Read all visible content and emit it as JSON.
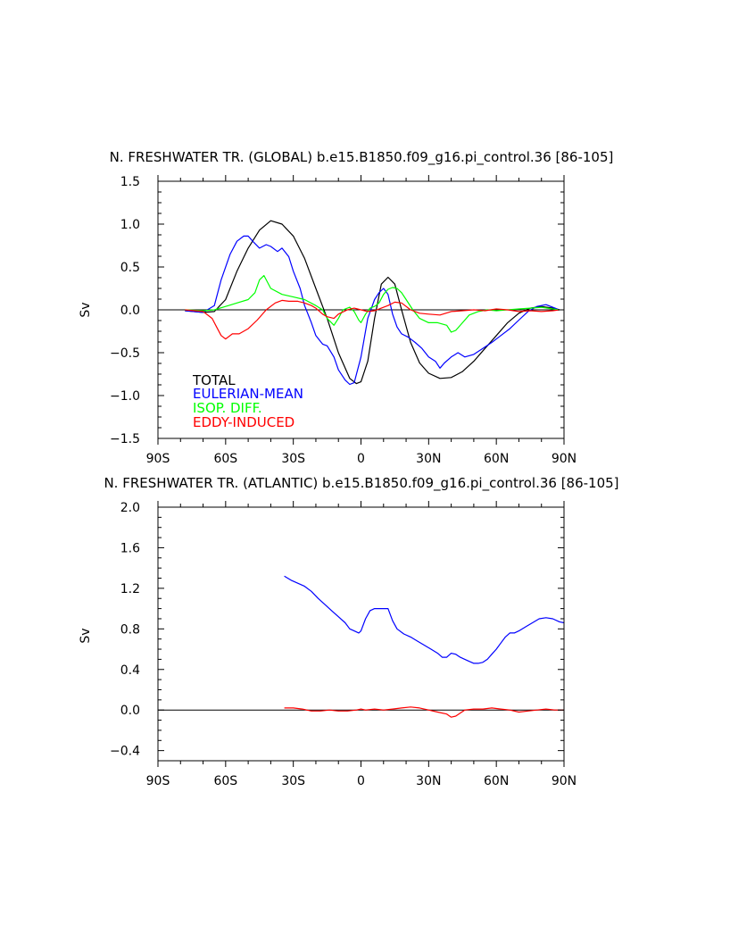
{
  "chart_data": [
    {
      "type": "line",
      "title": "N. FRESHWATER TR. (GLOBAL) b.e15.B1850.f09_g16.pi_control.36  [86-105]",
      "xlabel": "",
      "ylabel": "Sv",
      "xlim": [
        -90,
        90
      ],
      "ylim": [
        -1.5,
        1.5
      ],
      "x_ticks": [
        -90,
        -60,
        -30,
        0,
        30,
        60,
        90
      ],
      "x_tick_labels": [
        "90S",
        "60S",
        "30S",
        "0",
        "30N",
        "60N",
        "90N"
      ],
      "y_ticks": [
        -1.5,
        -1.0,
        -0.5,
        0.0,
        0.5,
        1.0,
        1.5
      ],
      "y_tick_labels": [
        "−1.5",
        "−1.0",
        "−0.5",
        "0.0",
        "0.5",
        "1.0",
        "1.5"
      ],
      "legend_position": "bottom-left",
      "series": [
        {
          "name": "TOTAL",
          "color": "#000000",
          "x": [
            -78,
            -70,
            -65,
            -60,
            -55,
            -50,
            -45,
            -40,
            -35,
            -30,
            -25,
            -20,
            -15,
            -10,
            -5,
            -2,
            0,
            3,
            6,
            9,
            12,
            15,
            18,
            22,
            26,
            30,
            35,
            40,
            45,
            50,
            55,
            60,
            65,
            70,
            75,
            80,
            85,
            88
          ],
          "values": [
            -0.01,
            -0.03,
            -0.02,
            0.12,
            0.45,
            0.72,
            0.93,
            1.04,
            1.0,
            0.86,
            0.6,
            0.25,
            -0.1,
            -0.5,
            -0.8,
            -0.86,
            -0.84,
            -0.6,
            -0.1,
            0.3,
            0.38,
            0.3,
            0.0,
            -0.38,
            -0.62,
            -0.74,
            -0.8,
            -0.79,
            -0.72,
            -0.6,
            -0.45,
            -0.3,
            -0.15,
            -0.04,
            0.02,
            0.04,
            0.02,
            0.0
          ]
        },
        {
          "name": "EULERIAN-MEAN",
          "color": "#0000ff",
          "x": [
            -78,
            -70,
            -65,
            -62,
            -58,
            -55,
            -52,
            -50,
            -48,
            -45,
            -42,
            -40,
            -37,
            -35,
            -32,
            -30,
            -27,
            -25,
            -22,
            -20,
            -17,
            -15,
            -12,
            -10,
            -7,
            -5,
            -3,
            0,
            3,
            6,
            8,
            10,
            12,
            14,
            16,
            18,
            21,
            24,
            27,
            30,
            33,
            35,
            37,
            40,
            43,
            46,
            50,
            54,
            58,
            62,
            66,
            70,
            74,
            78,
            82,
            86,
            88
          ],
          "values": [
            -0.01,
            -0.03,
            0.05,
            0.35,
            0.65,
            0.8,
            0.86,
            0.86,
            0.8,
            0.72,
            0.76,
            0.74,
            0.68,
            0.72,
            0.62,
            0.45,
            0.25,
            0.05,
            -0.15,
            -0.3,
            -0.4,
            -0.42,
            -0.55,
            -0.7,
            -0.82,
            -0.87,
            -0.85,
            -0.55,
            -0.1,
            0.12,
            0.2,
            0.25,
            0.18,
            -0.05,
            -0.2,
            -0.28,
            -0.32,
            -0.38,
            -0.45,
            -0.55,
            -0.6,
            -0.68,
            -0.62,
            -0.55,
            -0.5,
            -0.55,
            -0.52,
            -0.45,
            -0.38,
            -0.3,
            -0.22,
            -0.12,
            -0.02,
            0.04,
            0.06,
            0.02,
            0.0
          ]
        },
        {
          "name": "ISOP. DIFF.",
          "color": "#00ff00",
          "x": [
            -78,
            -70,
            -65,
            -60,
            -55,
            -50,
            -47,
            -45,
            -43,
            -40,
            -35,
            -30,
            -25,
            -20,
            -17,
            -15,
            -12,
            -10,
            -8,
            -5,
            -3,
            -1,
            0,
            2,
            4,
            6,
            8,
            10,
            12,
            14,
            16,
            18,
            20,
            23,
            26,
            30,
            34,
            38,
            40,
            42,
            45,
            48,
            52,
            56,
            60,
            65,
            70,
            75,
            80,
            85,
            88
          ],
          "values": [
            0.0,
            -0.01,
            0.0,
            0.04,
            0.08,
            0.12,
            0.2,
            0.35,
            0.4,
            0.25,
            0.18,
            0.15,
            0.12,
            0.05,
            0.0,
            -0.1,
            -0.18,
            -0.1,
            0.0,
            0.03,
            -0.02,
            -0.12,
            -0.15,
            -0.05,
            0.02,
            0.04,
            0.08,
            0.18,
            0.24,
            0.26,
            0.25,
            0.2,
            0.12,
            0.0,
            -0.1,
            -0.15,
            -0.15,
            -0.18,
            -0.26,
            -0.24,
            -0.15,
            -0.06,
            -0.02,
            0.0,
            -0.01,
            0.0,
            0.01,
            0.02,
            0.03,
            0.01,
            0.0
          ]
        },
        {
          "name": "EDDY-INDUCED",
          "color": "#ff0000",
          "x": [
            -78,
            -70,
            -66,
            -64,
            -62,
            -60,
            -57,
            -54,
            -50,
            -46,
            -42,
            -38,
            -35,
            -32,
            -28,
            -25,
            -22,
            -20,
            -17,
            -15,
            -12,
            -10,
            -6,
            -3,
            0,
            3,
            6,
            9,
            12,
            15,
            18,
            22,
            26,
            30,
            35,
            40,
            45,
            50,
            55,
            60,
            65,
            70,
            75,
            80,
            85,
            88
          ],
          "values": [
            0.0,
            -0.02,
            -0.1,
            -0.2,
            -0.3,
            -0.34,
            -0.28,
            -0.28,
            -0.22,
            -0.12,
            0.0,
            0.08,
            0.11,
            0.1,
            0.1,
            0.08,
            0.05,
            0.02,
            -0.05,
            -0.08,
            -0.1,
            -0.05,
            0.0,
            0.02,
            0.0,
            -0.02,
            -0.01,
            0.02,
            0.05,
            0.09,
            0.08,
            0.0,
            -0.04,
            -0.05,
            -0.06,
            -0.02,
            -0.01,
            0.0,
            -0.01,
            0.01,
            0.0,
            -0.02,
            -0.01,
            -0.02,
            -0.01,
            0.0
          ]
        }
      ]
    },
    {
      "type": "line",
      "title": "N. FRESHWATER TR. (ATLANTIC) b.e15.B1850.f09_g16.pi_control.36  [86-105]",
      "xlabel": "",
      "ylabel": "Sv",
      "xlim": [
        -90,
        90
      ],
      "ylim": [
        -0.5,
        2.0
      ],
      "x_ticks": [
        -90,
        -60,
        -30,
        0,
        30,
        60,
        90
      ],
      "x_tick_labels": [
        "90S",
        "60S",
        "30S",
        "0",
        "30N",
        "60N",
        "90N"
      ],
      "y_ticks": [
        -0.4,
        0.0,
        0.4,
        0.8,
        1.2,
        1.6,
        2.0
      ],
      "y_tick_labels": [
        "−0.4",
        "0.0",
        "0.4",
        "0.8",
        "1.2",
        "1.6",
        "2.0"
      ],
      "series": [
        {
          "name": "EULERIAN-MEAN",
          "color": "#0000ff",
          "x": [
            -34,
            -31,
            -28,
            -25,
            -22,
            -19,
            -16,
            -13,
            -10,
            -7,
            -5,
            -3,
            -1,
            0,
            2,
            4,
            6,
            8,
            10,
            12,
            14,
            16,
            19,
            22,
            25,
            28,
            31,
            34,
            36,
            38,
            40,
            42,
            44,
            46,
            48,
            50,
            52,
            54,
            56,
            58,
            60,
            62,
            64,
            66,
            68,
            70,
            73,
            76,
            79,
            82,
            85,
            88,
            90
          ],
          "values": [
            1.32,
            1.28,
            1.25,
            1.22,
            1.17,
            1.1,
            1.04,
            0.98,
            0.92,
            0.86,
            0.8,
            0.78,
            0.76,
            0.78,
            0.9,
            0.98,
            1.0,
            1.0,
            1.0,
            1.0,
            0.88,
            0.8,
            0.75,
            0.72,
            0.68,
            0.64,
            0.6,
            0.56,
            0.52,
            0.52,
            0.56,
            0.55,
            0.52,
            0.5,
            0.48,
            0.46,
            0.46,
            0.47,
            0.5,
            0.55,
            0.6,
            0.66,
            0.72,
            0.76,
            0.76,
            0.78,
            0.82,
            0.86,
            0.9,
            0.91,
            0.9,
            0.87,
            0.86
          ]
        },
        {
          "name": "EDDY-INDUCED",
          "color": "#ff0000",
          "x": [
            -34,
            -30,
            -26,
            -22,
            -18,
            -14,
            -10,
            -6,
            -2,
            0,
            2,
            6,
            10,
            14,
            18,
            22,
            26,
            30,
            34,
            38,
            40,
            42,
            44,
            46,
            50,
            54,
            58,
            62,
            66,
            70,
            74,
            78,
            82,
            86,
            90
          ],
          "values": [
            0.02,
            0.02,
            0.01,
            -0.01,
            -0.01,
            0.0,
            -0.01,
            -0.01,
            0.0,
            0.01,
            0.0,
            0.01,
            0.0,
            0.01,
            0.02,
            0.03,
            0.02,
            0.0,
            -0.02,
            -0.04,
            -0.07,
            -0.06,
            -0.03,
            0.0,
            0.01,
            0.01,
            0.02,
            0.01,
            0.0,
            -0.02,
            -0.01,
            0.0,
            0.01,
            0.0,
            0.0
          ]
        }
      ]
    }
  ]
}
